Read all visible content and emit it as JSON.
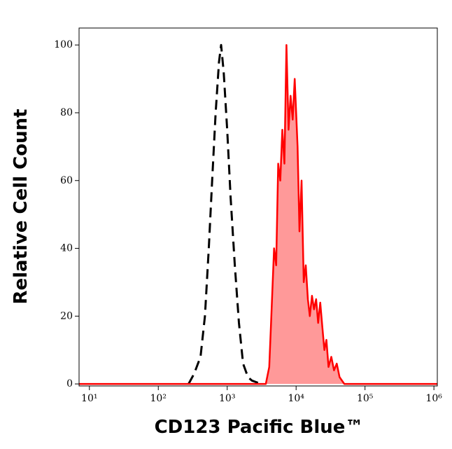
{
  "chart_data": {
    "type": "line",
    "x_label": "CD123 Pacific Blue™",
    "y_label": "Relative Cell Count",
    "xscale": "log",
    "xlim": [
      7.08,
      1120000
    ],
    "ylim": [
      -0.6,
      105
    ],
    "xticks": [
      {
        "value": 10,
        "label": "10¹"
      },
      {
        "value": 100,
        "label": "10²"
      },
      {
        "value": 1000,
        "label": "10³"
      },
      {
        "value": 10000,
        "label": "10⁴"
      },
      {
        "value": 100000,
        "label": "10⁵"
      },
      {
        "value": 1000000,
        "label": "10⁶"
      }
    ],
    "yticks": [
      0,
      20,
      40,
      60,
      80,
      100
    ],
    "series": [
      {
        "color": "#000000",
        "dashed": true,
        "filled": false,
        "x": [
          275,
          331,
          410,
          475,
          540,
          605,
          680,
          760,
          815,
          890,
          1000,
          1120,
          1290,
          1480,
          1700,
          2000,
          2280,
          3090
        ],
        "values": [
          0,
          3,
          8,
          20,
          40,
          60,
          80,
          95,
          100,
          92,
          75,
          55,
          35,
          18,
          6,
          2,
          1,
          0
        ]
      },
      {
        "color": "#ff0000",
        "dashed": false,
        "filled": true,
        "fill": "#ff9999",
        "x": [
          7.08,
          3000,
          3630,
          4070,
          4370,
          4790,
          5130,
          5500,
          5890,
          6310,
          6760,
          7240,
          7760,
          8320,
          8910,
          9550,
          10500,
          11200,
          12000,
          12900,
          13800,
          14800,
          15800,
          17000,
          18200,
          19500,
          20900,
          22400,
          24000,
          25700,
          27500,
          29500,
          32400,
          35500,
          38900,
          42700,
          50100,
          1120000
        ],
        "values": [
          0,
          0,
          0,
          5,
          20,
          40,
          35,
          65,
          60,
          75,
          65,
          100,
          75,
          85,
          78,
          90,
          70,
          45,
          60,
          30,
          35,
          25,
          20,
          26,
          22,
          25,
          18,
          24,
          17,
          10,
          13,
          5,
          8,
          4,
          6,
          2,
          0,
          0
        ]
      }
    ]
  }
}
